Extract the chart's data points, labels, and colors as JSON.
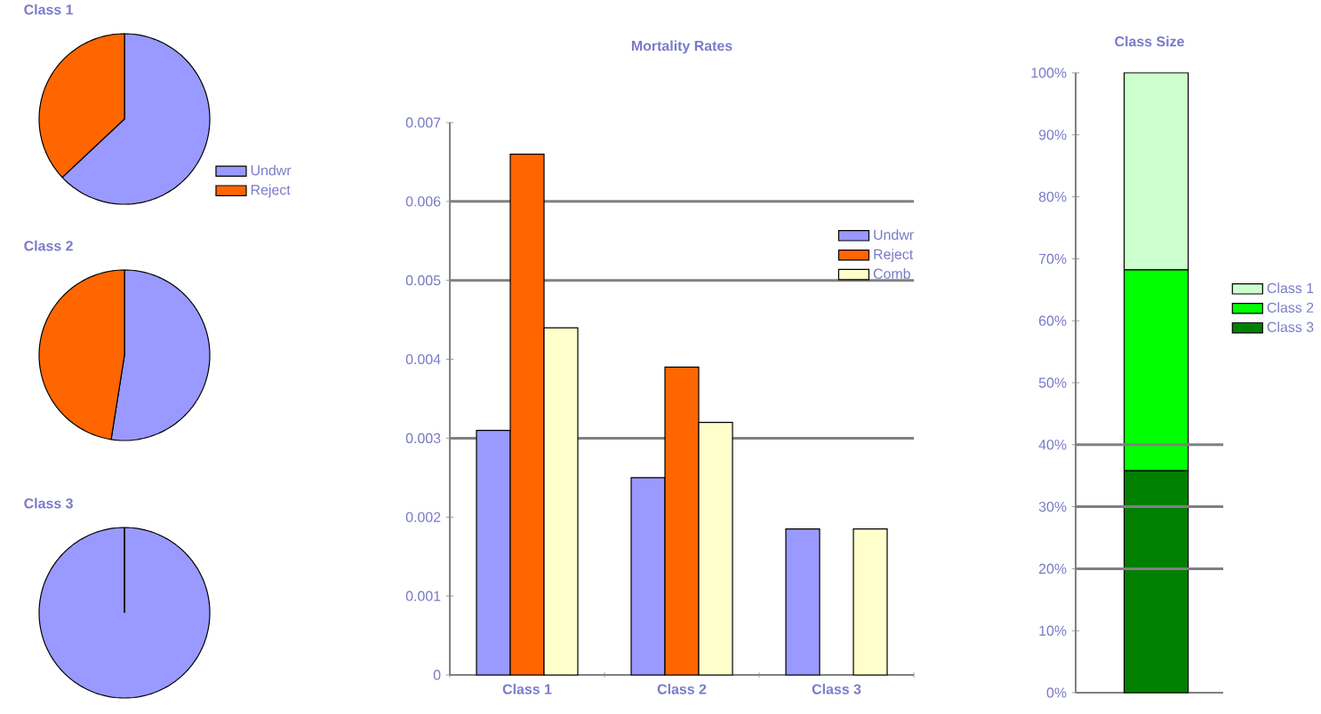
{
  "chart_data": [
    {
      "type": "pie",
      "title": "Class 1",
      "categories": [
        "Undwr",
        "Reject"
      ],
      "values": [
        63,
        37
      ],
      "colors": [
        "#9999ff",
        "#ff6600"
      ],
      "legend": "bottom right"
    },
    {
      "type": "pie",
      "title": "Class 2",
      "categories": [
        null,
        null
      ],
      "values": [
        52.5,
        47.5
      ],
      "colors": [
        "#9999ff",
        "#ff6600"
      ]
    },
    {
      "type": "pie",
      "title": "Class 3",
      "categories": [
        null,
        null
      ],
      "values": [
        100,
        0
      ],
      "colors": [
        "#9999ff",
        "#ff6600"
      ]
    },
    {
      "type": "bar",
      "title": "Mortality Rates",
      "categories": [
        "Class 1",
        "Class 2",
        "Class 3"
      ],
      "ylim": [
        0,
        0.007
      ],
      "yticks": [
        0,
        0.001,
        0.002,
        0.003,
        0.004,
        0.005,
        0.006,
        0.007
      ],
      "legend": "top right",
      "series": [
        {
          "name": "Undwr",
          "color": "#9999ff",
          "values": [
            0.0031,
            0.0025,
            0.00185
          ]
        },
        {
          "name": "Reject",
          "color": "#ff6600",
          "values": [
            0.0066,
            0.0039,
            null
          ]
        },
        {
          "name": "Comb",
          "color": "#ffffcc",
          "values": [
            0.0044,
            0.0032,
            0.00185
          ]
        }
      ],
      "ref_lines": [
        {
          "axis": "y",
          "value": 0.003,
          "color": "#808080"
        },
        {
          "axis": "y",
          "value": 0.005,
          "color": "#808080"
        },
        {
          "axis": "y",
          "value": 0.006,
          "color": "#808080"
        }
      ]
    },
    {
      "type": "bar",
      "title": "Class Size",
      "categories": [
        null
      ],
      "stacked": true,
      "ylim": [
        0,
        100
      ],
      "legend": "right",
      "yticks": [
        {
          "value": 0,
          "label": "0%"
        },
        {
          "value": 10,
          "label": "10%"
        },
        {
          "value": 20,
          "label": "20%"
        },
        {
          "value": 30,
          "label": "30%"
        },
        {
          "value": 40,
          "label": "40%"
        },
        {
          "value": 50,
          "label": "50%"
        },
        {
          "value": 60,
          "label": "60%"
        },
        {
          "value": 70,
          "label": "70%"
        },
        {
          "value": 80,
          "label": "80%"
        },
        {
          "value": 90,
          "label": "90%"
        },
        {
          "value": 100,
          "label": "100%"
        }
      ],
      "series": [
        {
          "name": "Class 3",
          "color": "#008000",
          "values": [
            35.8
          ]
        },
        {
          "name": "Class 2",
          "color": "#00ff00",
          "values": [
            32.4
          ]
        },
        {
          "name": "Class 1",
          "color": "#ccffcc",
          "values": [
            31.8
          ]
        }
      ],
      "ref_lines": [
        {
          "axis": "y",
          "value": 20,
          "color": "#808080"
        },
        {
          "axis": "y",
          "value": 30,
          "color": "#808080"
        },
        {
          "axis": "y",
          "value": 40,
          "color": "#808080"
        }
      ]
    }
  ]
}
